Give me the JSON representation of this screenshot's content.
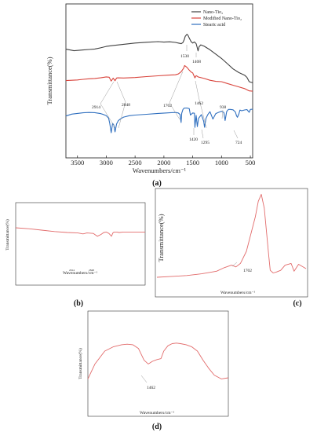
{
  "chart_data": [
    {
      "id": "a",
      "type": "line",
      "panel_label": "(a)",
      "xlabel": "Wavenumbers/cm⁻¹",
      "ylabel": "Transmittance(%)",
      "xlim": [
        3700,
        460
      ],
      "xticks": [
        "3500",
        "3000",
        "2500",
        "2000",
        "1500",
        "1000",
        "500"
      ],
      "xtick_values": [
        3500,
        3000,
        2500,
        2000,
        1500,
        1000,
        500
      ],
      "legend_position": "top-right",
      "series": [
        {
          "name": "Nano-Tio₂",
          "color": "#404040",
          "x": [
            3700,
            3560,
            3500,
            3400,
            3300,
            3200,
            3100,
            3000,
            2900,
            2700,
            2500,
            2300,
            2100,
            2000,
            1900,
            1800,
            1750,
            1700,
            1670,
            1650,
            1630,
            1600,
            1580,
            1560,
            1530,
            1500,
            1470,
            1440,
            1420,
            1408,
            1390,
            1360,
            1300,
            1200,
            1100,
            1000,
            900,
            800,
            700,
            600,
            560,
            520,
            460
          ],
          "y": [
            70.6,
            69.6,
            69.8,
            70.1,
            70.4,
            70.7,
            71.5,
            72.4,
            72.9,
            73.8,
            74.6,
            75.1,
            75.5,
            75.2,
            75.4,
            75.0,
            74.6,
            74.2,
            74.9,
            76.6,
            79.0,
            80.3,
            79.5,
            77.8,
            75.6,
            74.6,
            75.3,
            74.2,
            71.4,
            69.5,
            72.2,
            73.4,
            72.5,
            70.2,
            67.4,
            64.6,
            61.2,
            57.8,
            55.4,
            53.7,
            52.3,
            49.5,
            48.8
          ]
        },
        {
          "name": "Modified Nano-Tio₂",
          "color": "#d9443c",
          "x": [
            3700,
            3600,
            3500,
            3400,
            3300,
            3200,
            3100,
            3000,
            2950,
            2914,
            2880,
            2848,
            2820,
            2800,
            2700,
            2500,
            2300,
            2100,
            1900,
            1800,
            1750,
            1702,
            1660,
            1640,
            1600,
            1560,
            1530,
            1500,
            1462,
            1440,
            1400,
            1300,
            1200,
            1100,
            1000,
            900,
            800,
            700,
            600,
            560,
            520,
            460
          ],
          "y": [
            50.2,
            50.4,
            50.6,
            51.0,
            51.4,
            51.6,
            52.0,
            52.6,
            52.4,
            49.9,
            51.8,
            50.1,
            51.9,
            52.0,
            51.9,
            52.2,
            52.8,
            53.3,
            53.8,
            54.0,
            54.5,
            55.9,
            58.1,
            60.0,
            58.8,
            57.0,
            55.8,
            55.2,
            52.0,
            53.4,
            52.5,
            51.6,
            50.4,
            49.7,
            49.5,
            48.3,
            47.2,
            46.1,
            45.0,
            44.3,
            43.5,
            43.3
          ]
        },
        {
          "name": "Stearic acid",
          "color": "#2f6fbf",
          "x": [
            3700,
            3600,
            3500,
            3400,
            3300,
            3200,
            3100,
            3050,
            3000,
            2960,
            2940,
            2914,
            2890,
            2870,
            2848,
            2820,
            2790,
            2750,
            2700,
            2600,
            2500,
            2300,
            2100,
            1900,
            1800,
            1750,
            1720,
            1702,
            1690,
            1670,
            1650,
            1600,
            1560,
            1540,
            1500,
            1470,
            1462,
            1440,
            1420,
            1400,
            1350,
            1310,
            1295,
            1270,
            1240,
            1200,
            1150,
            1100,
            1050,
            1000,
            960,
            938,
            910,
            880,
            850,
            800,
            760,
            740,
            724,
            700,
            680,
            650,
            600,
            560,
            520,
            500,
            460
          ],
          "y": [
            27.2,
            28.4,
            28.9,
            29.3,
            29.5,
            29.4,
            28.8,
            28.2,
            27.4,
            25.8,
            22.6,
            16.4,
            22.4,
            21.4,
            16.9,
            22.1,
            24.2,
            25.4,
            26.5,
            27.4,
            27.8,
            28.3,
            28.9,
            29.3,
            29.5,
            29.2,
            28.2,
            23.0,
            29.0,
            31.4,
            32.3,
            32.4,
            32.0,
            27.8,
            29.2,
            29.0,
            19.8,
            27.6,
            20.3,
            25.6,
            28.1,
            23.8,
            19.9,
            25.6,
            28.0,
            30.0,
            25.2,
            28.8,
            29.6,
            30.3,
            29.5,
            24.3,
            30.1,
            31.5,
            31.5,
            31.2,
            29.8,
            27.4,
            26.4,
            28.5,
            31.0,
            30.6,
            31.1,
            31.4,
            29.6,
            31.5,
            31.6
          ]
        }
      ],
      "annotations": [
        "1530",
        "1408",
        "2914",
        "2848",
        "1702",
        "1462",
        "938",
        "1420",
        "1295",
        "724"
      ]
    },
    {
      "id": "b",
      "type": "line",
      "panel_label": "(b)",
      "xlabel": "Wavenumbers/cm⁻¹",
      "ylabel": "Transmittance(%)",
      "series": [
        {
          "name": "",
          "color": "#e26b6b",
          "x": [
            0,
            10,
            20,
            30,
            40,
            48,
            52,
            55,
            60,
            63,
            66,
            68,
            70,
            72,
            74,
            75,
            76,
            78,
            80,
            83,
            85,
            90,
            100
          ],
          "y": [
            80,
            78,
            75,
            72,
            70,
            69,
            67,
            69,
            68,
            62,
            66,
            70,
            71,
            68,
            62,
            69,
            71,
            71,
            70,
            71,
            71,
            71,
            71
          ]
        }
      ],
      "annotations": [
        "2914",
        "2848"
      ]
    },
    {
      "id": "c",
      "type": "line",
      "panel_label": "(c)",
      "xlabel": "Wavenumbers/cm⁻¹",
      "ylabel": "Transmittance(%)",
      "series": [
        {
          "name": "",
          "color": "#e26b6b",
          "x": [
            0,
            10,
            20,
            30,
            40,
            45,
            50,
            53,
            56,
            60,
            63,
            66,
            68,
            70,
            72,
            75,
            76,
            78,
            80,
            83,
            86,
            90,
            92,
            95,
            100
          ],
          "y": [
            0,
            1,
            2,
            4,
            7,
            11,
            14,
            12,
            16,
            30,
            50,
            70,
            88,
            96,
            80,
            25,
            8,
            5,
            6,
            8,
            14,
            16,
            7,
            15,
            10
          ]
        }
      ],
      "annotations": [
        "1702"
      ]
    },
    {
      "id": "d",
      "type": "line",
      "panel_label": "(d)",
      "xlabel": "Wavenumbers/cm⁻¹",
      "ylabel": "Transmittance(%)",
      "series": [
        {
          "name": "",
          "color": "#e26b6b",
          "x": [
            0,
            5,
            12,
            18,
            24,
            28,
            32,
            36,
            40,
            43,
            46,
            49,
            52,
            54,
            57,
            60,
            63,
            66,
            70,
            74,
            78,
            82,
            86,
            90,
            95,
            100
          ],
          "y": [
            20,
            48,
            72,
            80,
            84,
            85,
            84,
            77,
            55,
            48,
            53,
            56,
            58,
            72,
            82,
            86,
            87,
            86,
            84,
            80,
            72,
            55,
            40,
            27,
            20,
            22
          ]
        }
      ],
      "annotations": [
        "1462"
      ]
    }
  ]
}
